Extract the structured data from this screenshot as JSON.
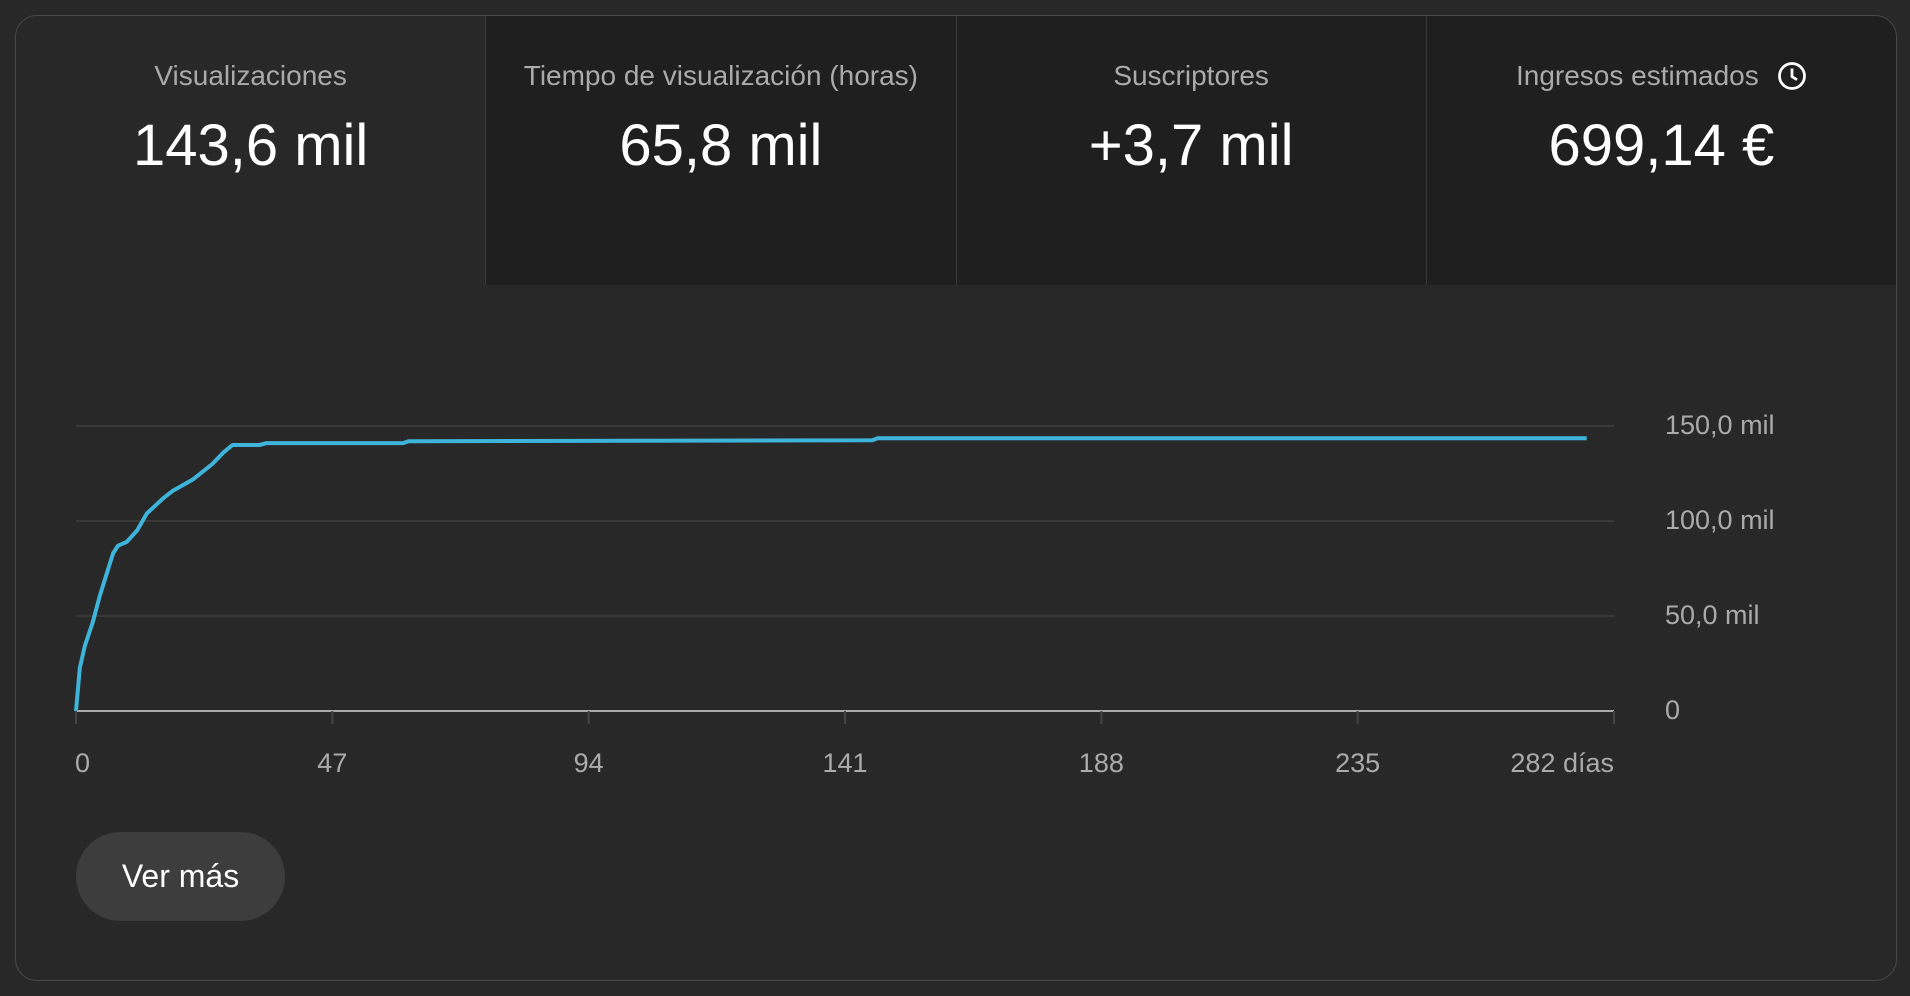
{
  "tiles": [
    {
      "title": "Visualizaciones",
      "value": "143,6 mil"
    },
    {
      "title": "Tiempo de visualización (horas)",
      "value": "65,8 mil"
    },
    {
      "title": "Suscriptores",
      "value": "+3,7 mil"
    },
    {
      "title": "Ingresos estimados",
      "value": "699,14 €",
      "icon": "clock-icon"
    }
  ],
  "button": {
    "label": "Ver más"
  },
  "colors": {
    "line": "#3eb4da",
    "grid": "#3f3f3f",
    "axis": "#aaaaaa"
  },
  "chart_data": {
    "type": "line",
    "title": "Visualizaciones",
    "xlabel": "días",
    "ylabel": "",
    "xlim": [
      0,
      282
    ],
    "ylim": [
      0,
      150000
    ],
    "grid": true,
    "x_ticks": [
      "0",
      "47",
      "94",
      "141",
      "188",
      "235",
      "282 días"
    ],
    "x_tick_values": [
      0,
      47,
      94,
      141,
      188,
      235,
      282
    ],
    "y_ticks": [
      "0",
      "50,0 mil",
      "100,0 mil",
      "150,0 mil"
    ],
    "y_tick_values": [
      0,
      50000,
      100000,
      150000
    ],
    "series": [
      {
        "name": "Visualizaciones",
        "x": [
          0,
          0.7,
          1.6,
          3.1,
          4.4,
          6.8,
          7.7,
          9.3,
          11.2,
          13,
          16,
          17.8,
          21.5,
          25,
          27,
          28.7,
          33.6,
          35,
          60,
          61,
          146,
          147,
          277
        ],
        "y": [
          0,
          22600,
          34000,
          47000,
          61000,
          83000,
          87000,
          89000,
          95000,
          104000,
          112000,
          116000,
          122000,
          130000,
          136000,
          140000,
          140000,
          141000,
          141000,
          142000,
          142500,
          143600,
          143600
        ]
      }
    ]
  }
}
